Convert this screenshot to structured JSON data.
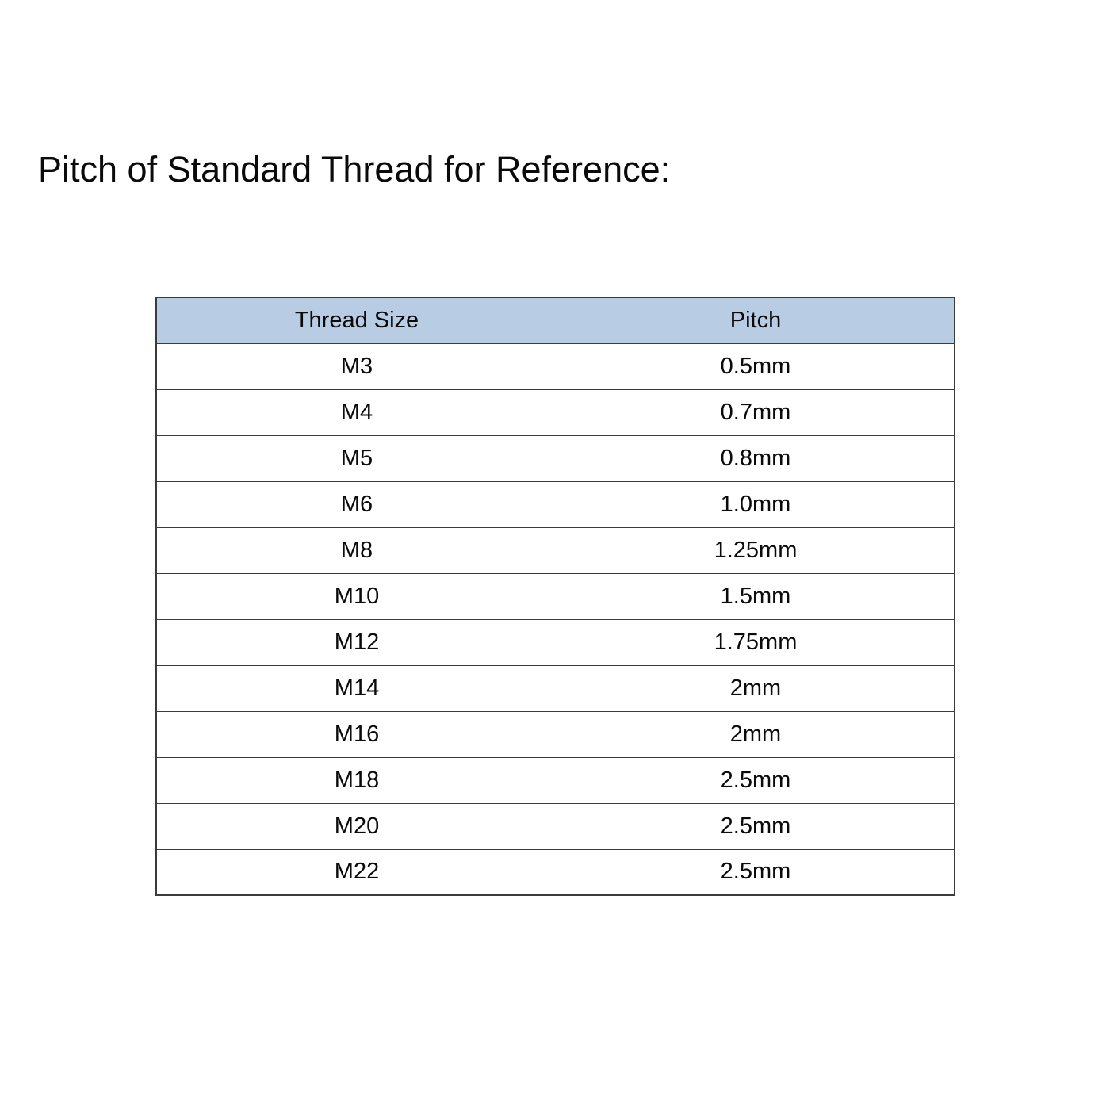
{
  "title": "Pitch of Standard Thread for Reference:",
  "table": {
    "header": {
      "thread_size": "Thread Size",
      "pitch": "Pitch"
    },
    "header_bg": "#b8cce4",
    "border_color": "#3b3b3b",
    "rows": [
      {
        "thread_size": "M3",
        "pitch": "0.5mm"
      },
      {
        "thread_size": "M4",
        "pitch": "0.7mm"
      },
      {
        "thread_size": "M5",
        "pitch": "0.8mm"
      },
      {
        "thread_size": "M6",
        "pitch": "1.0mm"
      },
      {
        "thread_size": "M8",
        "pitch": "1.25mm"
      },
      {
        "thread_size": "M10",
        "pitch": "1.5mm"
      },
      {
        "thread_size": "M12",
        "pitch": "1.75mm"
      },
      {
        "thread_size": "M14",
        "pitch": "2mm"
      },
      {
        "thread_size": "M16",
        "pitch": "2mm"
      },
      {
        "thread_size": "M18",
        "pitch": "2.5mm"
      },
      {
        "thread_size": "M20",
        "pitch": "2.5mm"
      },
      {
        "thread_size": "M22",
        "pitch": "2.5mm"
      }
    ]
  }
}
